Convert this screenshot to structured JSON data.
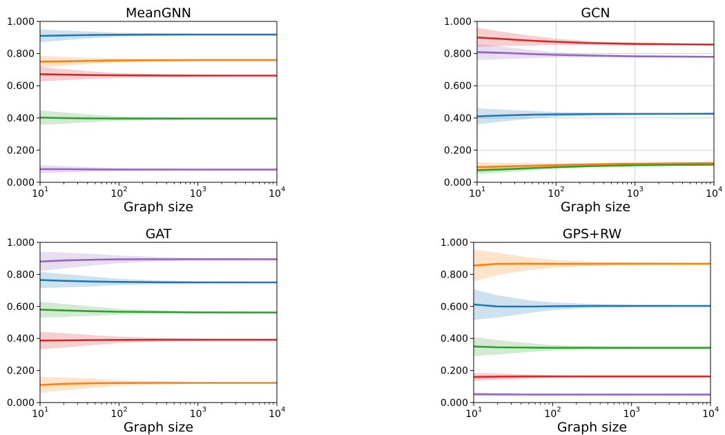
{
  "chart_data": [
    {
      "type": "line",
      "title": "MeanGNN",
      "xlabel": "Graph size",
      "ylabel": "",
      "xscale": "log",
      "xlim": [
        10,
        10000
      ],
      "ylim": [
        0,
        1
      ],
      "grid": false,
      "yticklabels": [
        "0.000",
        "0.200",
        "0.400",
        "0.600",
        "0.800",
        "1.000"
      ],
      "xticklabels": [
        "1",
        "2",
        "3",
        "4"
      ],
      "x": [
        10,
        20,
        50,
        100,
        300,
        1000,
        10000
      ],
      "series": [
        {
          "color": "#1f77b4",
          "values": [
            0.91,
            0.913,
            0.916,
            0.917,
            0.918,
            0.918,
            0.918
          ],
          "band": [
            0.04,
            0.03,
            0.02,
            0.012,
            0.008,
            0.005,
            0.003
          ]
        },
        {
          "color": "#ff7f0e",
          "values": [
            0.75,
            0.752,
            0.756,
            0.758,
            0.759,
            0.76,
            0.76
          ],
          "band": [
            0.035,
            0.028,
            0.018,
            0.012,
            0.008,
            0.005,
            0.003
          ]
        },
        {
          "color": "#d62728",
          "values": [
            0.672,
            0.669,
            0.666,
            0.665,
            0.664,
            0.663,
            0.663
          ],
          "band": [
            0.045,
            0.035,
            0.022,
            0.014,
            0.009,
            0.006,
            0.003
          ]
        },
        {
          "color": "#2ca02c",
          "values": [
            0.402,
            0.399,
            0.397,
            0.396,
            0.396,
            0.396,
            0.396
          ],
          "band": [
            0.045,
            0.035,
            0.022,
            0.014,
            0.009,
            0.006,
            0.003
          ]
        },
        {
          "color": "#9467bd",
          "values": [
            0.082,
            0.081,
            0.08,
            0.079,
            0.079,
            0.079,
            0.079
          ],
          "band": [
            0.025,
            0.02,
            0.013,
            0.009,
            0.006,
            0.004,
            0.002
          ]
        }
      ]
    },
    {
      "type": "line",
      "title": "GCN",
      "xlabel": "Graph size",
      "ylabel": "",
      "xscale": "log",
      "xlim": [
        10,
        10000
      ],
      "ylim": [
        0,
        1
      ],
      "grid": true,
      "yticklabels": [
        "0.000",
        "0.200",
        "0.400",
        "0.600",
        "0.800",
        "1.000"
      ],
      "xticklabels": [
        "1",
        "2",
        "3",
        "4"
      ],
      "x": [
        10,
        20,
        50,
        100,
        300,
        1000,
        10000
      ],
      "series": [
        {
          "color": "#d62728",
          "values": [
            0.9,
            0.892,
            0.88,
            0.873,
            0.865,
            0.86,
            0.856
          ],
          "band": [
            0.06,
            0.045,
            0.03,
            0.02,
            0.012,
            0.008,
            0.004
          ]
        },
        {
          "color": "#9467bd",
          "values": [
            0.81,
            0.805,
            0.797,
            0.792,
            0.787,
            0.783,
            0.78
          ],
          "band": [
            0.05,
            0.04,
            0.025,
            0.016,
            0.01,
            0.007,
            0.004
          ]
        },
        {
          "color": "#1f77b4",
          "values": [
            0.41,
            0.415,
            0.42,
            0.422,
            0.424,
            0.425,
            0.426
          ],
          "band": [
            0.05,
            0.038,
            0.024,
            0.015,
            0.01,
            0.006,
            0.003
          ]
        },
        {
          "color": "#ff7f0e",
          "values": [
            0.095,
            0.098,
            0.103,
            0.107,
            0.112,
            0.116,
            0.12
          ],
          "band": [
            0.03,
            0.024,
            0.016,
            0.011,
            0.007,
            0.005,
            0.003
          ]
        },
        {
          "color": "#2ca02c",
          "values": [
            0.075,
            0.08,
            0.088,
            0.094,
            0.101,
            0.106,
            0.11
          ],
          "band": [
            0.025,
            0.02,
            0.014,
            0.01,
            0.007,
            0.005,
            0.003
          ]
        }
      ]
    },
    {
      "type": "line",
      "title": "GAT",
      "xlabel": "Graph size",
      "ylabel": "",
      "xscale": "log",
      "xlim": [
        10,
        10000
      ],
      "ylim": [
        0,
        1
      ],
      "grid": false,
      "yticklabels": [
        "0.000",
        "0.200",
        "0.400",
        "0.600",
        "0.800",
        "1.000"
      ],
      "xticklabels": [
        "1",
        "2",
        "3",
        "4"
      ],
      "x": [
        10,
        20,
        50,
        100,
        300,
        1000,
        10000
      ],
      "series": [
        {
          "color": "#9467bd",
          "values": [
            0.88,
            0.887,
            0.892,
            0.894,
            0.895,
            0.895,
            0.895
          ],
          "band": [
            0.06,
            0.05,
            0.035,
            0.024,
            0.014,
            0.008,
            0.004
          ]
        },
        {
          "color": "#1f77b4",
          "values": [
            0.765,
            0.76,
            0.755,
            0.753,
            0.751,
            0.75,
            0.75
          ],
          "band": [
            0.05,
            0.042,
            0.03,
            0.02,
            0.012,
            0.007,
            0.003
          ]
        },
        {
          "color": "#2ca02c",
          "values": [
            0.58,
            0.575,
            0.57,
            0.567,
            0.565,
            0.563,
            0.562
          ],
          "band": [
            0.05,
            0.04,
            0.028,
            0.018,
            0.011,
            0.006,
            0.003
          ]
        },
        {
          "color": "#d62728",
          "values": [
            0.387,
            0.388,
            0.39,
            0.391,
            0.392,
            0.392,
            0.392
          ],
          "band": [
            0.055,
            0.045,
            0.03,
            0.02,
            0.012,
            0.007,
            0.003
          ]
        },
        {
          "color": "#ff7f0e",
          "values": [
            0.11,
            0.117,
            0.121,
            0.122,
            0.123,
            0.123,
            0.123
          ],
          "band": [
            0.05,
            0.04,
            0.028,
            0.018,
            0.011,
            0.006,
            0.003
          ]
        }
      ]
    },
    {
      "type": "line",
      "title": "GPS+RW",
      "xlabel": "Graph size",
      "ylabel": "",
      "xscale": "log",
      "xlim": [
        10,
        10000
      ],
      "ylim": [
        0,
        1
      ],
      "grid": false,
      "yticklabels": [
        "0.000",
        "0.200",
        "0.400",
        "0.600",
        "0.800",
        "1.000"
      ],
      "xticklabels": [
        "1",
        "2",
        "3",
        "4"
      ],
      "x": [
        10,
        20,
        50,
        100,
        300,
        1000,
        10000
      ],
      "series": [
        {
          "color": "#ff7f0e",
          "values": [
            0.855,
            0.866,
            0.867,
            0.866,
            0.866,
            0.867,
            0.867
          ],
          "band": [
            0.1,
            0.07,
            0.04,
            0.025,
            0.014,
            0.008,
            0.004
          ]
        },
        {
          "color": "#1f77b4",
          "values": [
            0.612,
            0.6,
            0.599,
            0.601,
            0.603,
            0.603,
            0.603
          ],
          "band": [
            0.095,
            0.07,
            0.04,
            0.024,
            0.013,
            0.007,
            0.004
          ]
        },
        {
          "color": "#2ca02c",
          "values": [
            0.35,
            0.345,
            0.343,
            0.342,
            0.342,
            0.342,
            0.342
          ],
          "band": [
            0.06,
            0.045,
            0.028,
            0.017,
            0.01,
            0.006,
            0.003
          ]
        },
        {
          "color": "#d62728",
          "values": [
            0.16,
            0.162,
            0.163,
            0.163,
            0.163,
            0.163,
            0.163
          ],
          "band": [
            0.025,
            0.02,
            0.013,
            0.008,
            0.005,
            0.003,
            0.002
          ]
        },
        {
          "color": "#9467bd",
          "values": [
            0.052,
            0.051,
            0.05,
            0.05,
            0.05,
            0.05,
            0.05
          ],
          "band": [
            0.01,
            0.008,
            0.006,
            0.004,
            0.003,
            0.002,
            0.001
          ]
        }
      ]
    }
  ]
}
